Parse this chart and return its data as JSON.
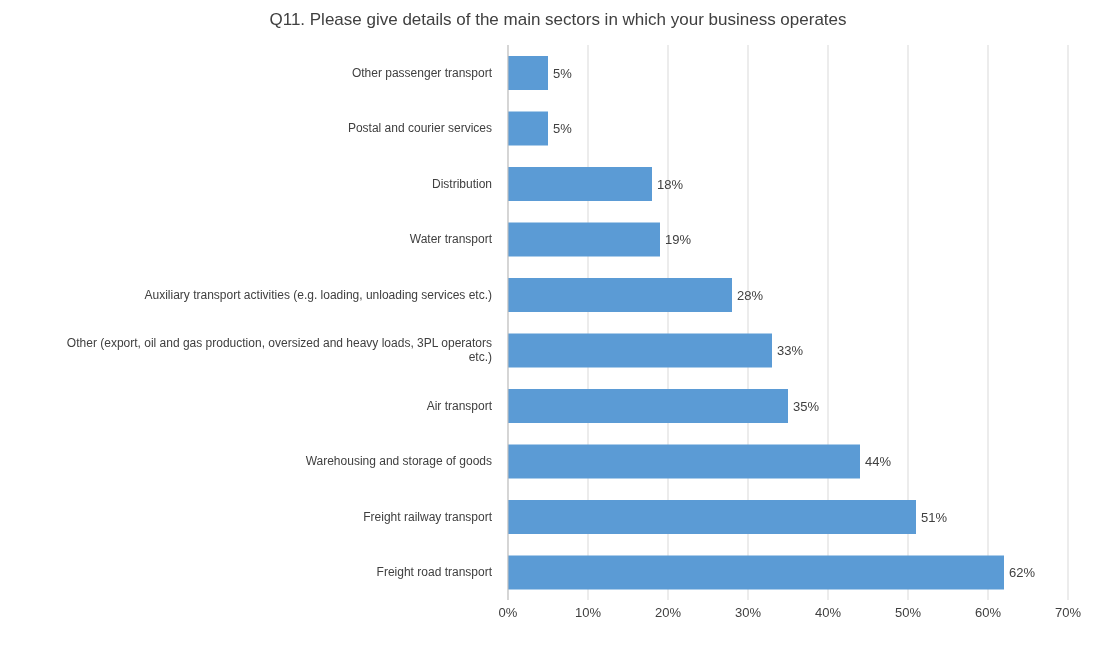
{
  "chart_data": {
    "type": "bar",
    "orientation": "horizontal",
    "title": "Q11. Please give details of the main sectors in which your business operates",
    "categories": [
      "Other passenger transport",
      "Postal and courier services",
      "Distribution",
      "Water transport",
      "Auxiliary transport activities (e.g. loading, unloading services etc.)",
      "Other (export, oil and gas production, oversized and heavy loads, 3PL operators etc.)",
      "Air transport",
      "Warehousing and storage of goods",
      "Freight railway transport",
      "Freight road transport"
    ],
    "values": [
      5,
      5,
      18,
      19,
      28,
      33,
      35,
      44,
      51,
      62
    ],
    "value_labels": [
      "5%",
      "5%",
      "18%",
      "19%",
      "28%",
      "33%",
      "35%",
      "44%",
      "51%",
      "62%"
    ],
    "color": "#5b9bd5",
    "xlim": [
      0,
      70
    ],
    "xticks": [
      {
        "value": 0,
        "label": "0%"
      },
      {
        "value": 10,
        "label": "10%"
      },
      {
        "value": 20,
        "label": "20%"
      },
      {
        "value": 30,
        "label": "30%"
      },
      {
        "value": 40,
        "label": "40%"
      },
      {
        "value": 50,
        "label": "50%"
      },
      {
        "value": 60,
        "label": "60%"
      },
      {
        "value": 70,
        "label": "70%"
      }
    ],
    "grid": "x"
  }
}
